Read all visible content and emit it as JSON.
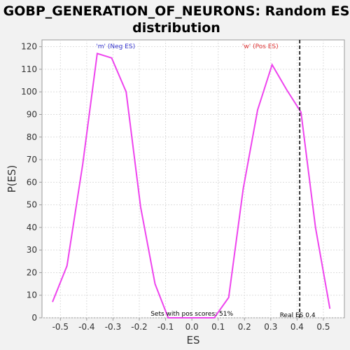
{
  "chart_data": {
    "type": "line",
    "title_line1": "GOBP_GENERATION_OF_NEURONS: Random ES",
    "title_line2": "distribution",
    "xlabel": "ES",
    "ylabel": "P(ES)",
    "xlim": [
      -0.57,
      0.58
    ],
    "ylim": [
      0,
      123
    ],
    "x_ticks": [
      -0.5,
      -0.4,
      -0.3,
      -0.2,
      -0.1,
      0.0,
      0.1,
      0.2,
      0.3,
      0.4,
      0.5
    ],
    "x_tick_labels": [
      "-0.5",
      "-0.4",
      "-0.3",
      "-0.2",
      "-0.1",
      "0.0",
      "0.1",
      "0.2",
      "0.3",
      "0.4",
      "0.5"
    ],
    "y_ticks": [
      0,
      10,
      20,
      30,
      40,
      50,
      60,
      70,
      80,
      90,
      100,
      110,
      120
    ],
    "grid": true,
    "series": [
      {
        "color": "#ee44ee",
        "x": [
          -0.53,
          -0.475,
          -0.415,
          -0.36,
          -0.305,
          -0.25,
          -0.195,
          -0.14,
          -0.09,
          -0.035,
          0.02,
          0.085,
          0.14,
          0.195,
          0.25,
          0.305,
          0.36,
          0.415,
          0.47,
          0.525
        ],
        "y": [
          7,
          23,
          68,
          117,
          115,
          100,
          49,
          15,
          0,
          0,
          0,
          0,
          9,
          57,
          92,
          112,
          101,
          91,
          40,
          4
        ]
      }
    ],
    "annotations": {
      "neg_label": "'m' (Neg ES)",
      "pos_label": "'w' (Pos ES)",
      "sets_label": "Sets with pos scores: 51%",
      "real_es_label": "Real ES 0.4",
      "real_es": 0.41
    },
    "colors": {
      "line": "#ee44ee",
      "neg_label": "#3333cc",
      "pos_label": "#dd3333",
      "real_es_line": "#333333"
    }
  }
}
